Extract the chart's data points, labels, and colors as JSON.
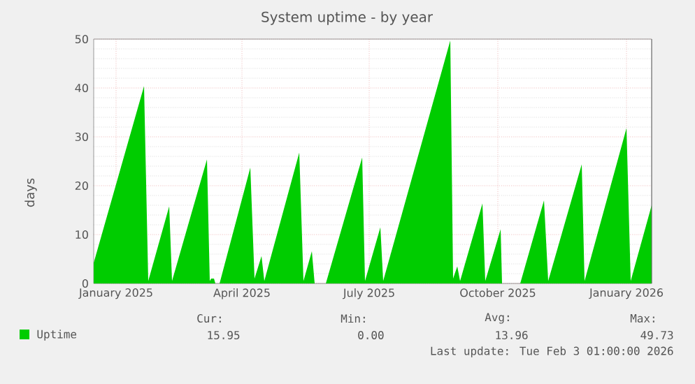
{
  "chart_data": {
    "type": "area",
    "title": "System uptime - by year",
    "ylabel": "days",
    "x": [
      "2024-12-16",
      "2025-01-21",
      "2025-01-24",
      "2025-02-08",
      "2025-02-10",
      "2025-03-07",
      "2025-03-09",
      "2025-03-10",
      "2025-03-12",
      "2025-03-13",
      "2025-03-16",
      "2025-04-07",
      "2025-04-10",
      "2025-04-15",
      "2025-04-17",
      "2025-05-12",
      "2025-05-15",
      "2025-05-21",
      "2025-05-23",
      "2025-05-27",
      "2025-05-31",
      "2025-06-26",
      "2025-06-28",
      "2025-07-09",
      "2025-07-11",
      "2025-08-28",
      "2025-08-30",
      "2025-09-02",
      "2025-09-04",
      "2025-09-20",
      "2025-09-22",
      "2025-10-03",
      "2025-10-04",
      "2025-10-10",
      "2025-10-17",
      "2025-11-03",
      "2025-11-06",
      "2025-11-30",
      "2025-12-02",
      "2026-01-01",
      "2026-01-04",
      "2026-01-19"
    ],
    "series": [
      {
        "name": "Uptime",
        "color": "#00cc00",
        "values": [
          4.2,
          40.4,
          0.5,
          15.8,
          0.5,
          25.4,
          0.5,
          1.0,
          1.0,
          0,
          0,
          23.7,
          1,
          5.6,
          0.5,
          26.8,
          0.5,
          6.6,
          0,
          null,
          0,
          25.8,
          0.5,
          11.5,
          0.5,
          49.7,
          1,
          3.5,
          0.5,
          16.4,
          0.5,
          11.1,
          0,
          null,
          0,
          17.0,
          0.5,
          24.4,
          0.5,
          31.8,
          0.5,
          16.0
        ]
      }
    ],
    "xlim": [
      "2024-12-16",
      "2026-01-19"
    ],
    "xticks": [
      {
        "value": "2025-01-01",
        "label": "January 2025"
      },
      {
        "value": "2025-04-01",
        "label": "April 2025"
      },
      {
        "value": "2025-07-01",
        "label": "July 2025"
      },
      {
        "value": "2025-10-01",
        "label": "October 2025"
      },
      {
        "value": "2026-01-01",
        "label": "January 2026"
      }
    ],
    "ylim": [
      0,
      50
    ],
    "yticks": [
      0,
      10,
      20,
      30,
      40,
      50
    ],
    "grid": true,
    "legend": "bottom",
    "annotations": [
      "Cur:",
      "Min:",
      "Avg:",
      "Max:",
      "15.95",
      "0.00",
      "13.96",
      "49.73",
      "Last update: Tue Feb  3 01:00:00 2026"
    ]
  }
}
